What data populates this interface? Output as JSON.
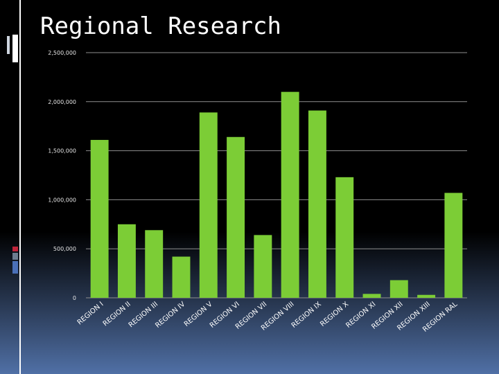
{
  "slide": {
    "title": "Regional Research"
  },
  "colors": {
    "bar": "#7ccd36",
    "gridline": "#8f8f8f",
    "text": "#ffffff",
    "tick_text": "#e6e6e6"
  },
  "chart_data": {
    "type": "bar",
    "title": "",
    "xlabel": "",
    "ylabel": "",
    "categories": [
      "REGION I",
      "REGION II",
      "REGION III",
      "REGION IV",
      "REGION V",
      "REGION VI",
      "REGION VII",
      "REGION VIII",
      "REGION IX",
      "REGION X",
      "REGION XI",
      "REGION XII",
      "REGION XIII",
      "REGION RAL"
    ],
    "values": [
      1610000,
      750000,
      690000,
      420000,
      1890000,
      1640000,
      640000,
      2100000,
      1910000,
      1230000,
      40000,
      180000,
      30000,
      1070000
    ],
    "ylim": [
      0,
      2500000
    ],
    "yticks": [
      0,
      500000,
      1000000,
      1500000,
      2000000,
      2500000
    ],
    "ytick_labels": [
      "0",
      "500,000",
      "1,000,000",
      "1,500,000",
      "2,000,000",
      "2,500,000"
    ],
    "grid": true,
    "legend": "none"
  }
}
